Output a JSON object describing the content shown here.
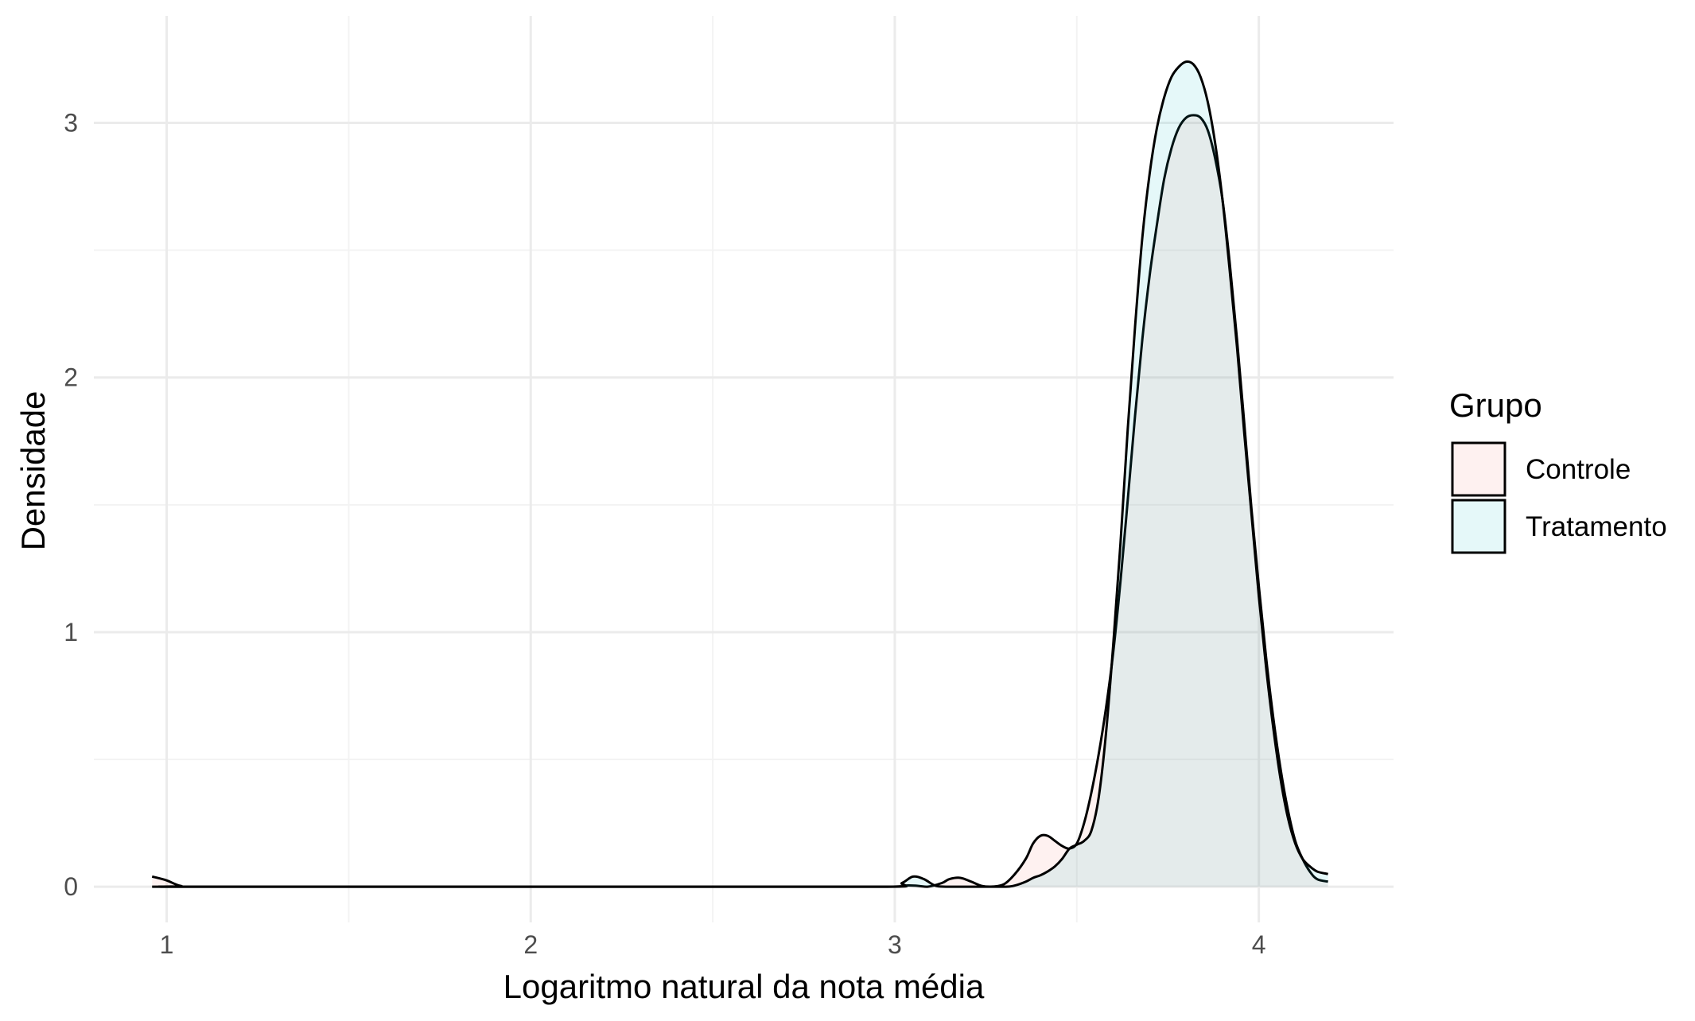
{
  "chart_data": {
    "type": "area",
    "chart_subtype": "density",
    "title": "",
    "xlabel": "Logaritmo natural da nota média",
    "ylabel": "Densidade",
    "xlim": [
      0.8,
      4.37
    ],
    "ylim": [
      -0.14,
      3.42
    ],
    "x_ticks": [
      1,
      2,
      3,
      4
    ],
    "x_tick_labels": [
      "1",
      "2",
      "3",
      "4"
    ],
    "y_ticks": [
      0,
      1,
      2,
      3
    ],
    "y_tick_labels": [
      "0",
      "1",
      "2",
      "3"
    ],
    "grid": true,
    "legend": {
      "title": "Grupo",
      "placement": "right"
    },
    "series": [
      {
        "name": "Controle",
        "fill": "#f8766d",
        "fill_opacity": 0.1,
        "x": [
          0.96,
          1.0,
          1.04,
          1.1,
          2.5,
          2.98,
          3.03,
          3.06,
          3.09,
          3.13,
          3.15,
          3.18,
          3.21,
          3.24,
          3.27,
          3.3,
          3.33,
          3.36,
          3.38,
          3.4,
          3.42,
          3.44,
          3.46,
          3.48,
          3.5,
          3.52,
          3.54,
          3.56,
          3.58,
          3.6,
          3.62,
          3.64,
          3.66,
          3.68,
          3.7,
          3.72,
          3.74,
          3.76,
          3.78,
          3.8,
          3.82,
          3.84,
          3.86,
          3.88,
          3.9,
          3.92,
          3.94,
          3.96,
          3.98,
          4.0,
          4.02,
          4.04,
          4.06,
          4.08,
          4.1,
          4.12,
          4.14,
          4.16,
          4.19
        ],
        "y": [
          0.04,
          0.025,
          0.003,
          0.0,
          0.0,
          0.0,
          0.005,
          0.004,
          0.0,
          0.015,
          0.03,
          0.035,
          0.02,
          0.003,
          0.001,
          0.01,
          0.05,
          0.11,
          0.17,
          0.2,
          0.2,
          0.18,
          0.16,
          0.15,
          0.17,
          0.25,
          0.37,
          0.52,
          0.7,
          0.92,
          1.2,
          1.52,
          1.85,
          2.15,
          2.4,
          2.6,
          2.78,
          2.9,
          2.98,
          3.02,
          3.03,
          3.02,
          2.97,
          2.86,
          2.7,
          2.45,
          2.15,
          1.82,
          1.48,
          1.18,
          0.9,
          0.66,
          0.46,
          0.3,
          0.18,
          0.11,
          0.06,
          0.03,
          0.02
        ]
      },
      {
        "name": "Tratamento",
        "fill": "#00bfc4",
        "fill_opacity": 0.1,
        "x": [
          0.96,
          1.0,
          1.04,
          1.1,
          2.5,
          2.98,
          3.02,
          3.05,
          3.08,
          3.11,
          3.14,
          3.2,
          3.3,
          3.33,
          3.36,
          3.38,
          3.4,
          3.42,
          3.44,
          3.46,
          3.48,
          3.5,
          3.52,
          3.54,
          3.56,
          3.58,
          3.6,
          3.62,
          3.64,
          3.66,
          3.68,
          3.7,
          3.72,
          3.74,
          3.76,
          3.78,
          3.8,
          3.82,
          3.84,
          3.86,
          3.88,
          3.9,
          3.92,
          3.94,
          3.96,
          3.98,
          4.0,
          4.02,
          4.04,
          4.06,
          4.08,
          4.1,
          4.12,
          4.14,
          4.16,
          4.19
        ],
        "y": [
          0.0,
          0.0,
          0.0,
          0.0,
          0.0,
          0.0,
          0.015,
          0.04,
          0.03,
          0.005,
          0.0,
          0.0,
          0.0,
          0.005,
          0.02,
          0.035,
          0.045,
          0.06,
          0.08,
          0.11,
          0.15,
          0.165,
          0.18,
          0.22,
          0.35,
          0.6,
          0.95,
          1.35,
          1.8,
          2.2,
          2.55,
          2.8,
          2.98,
          3.1,
          3.18,
          3.22,
          3.24,
          3.23,
          3.18,
          3.08,
          2.92,
          2.7,
          2.42,
          2.12,
          1.78,
          1.46,
          1.14,
          0.86,
          0.62,
          0.42,
          0.27,
          0.17,
          0.11,
          0.08,
          0.06,
          0.05
        ]
      }
    ]
  }
}
